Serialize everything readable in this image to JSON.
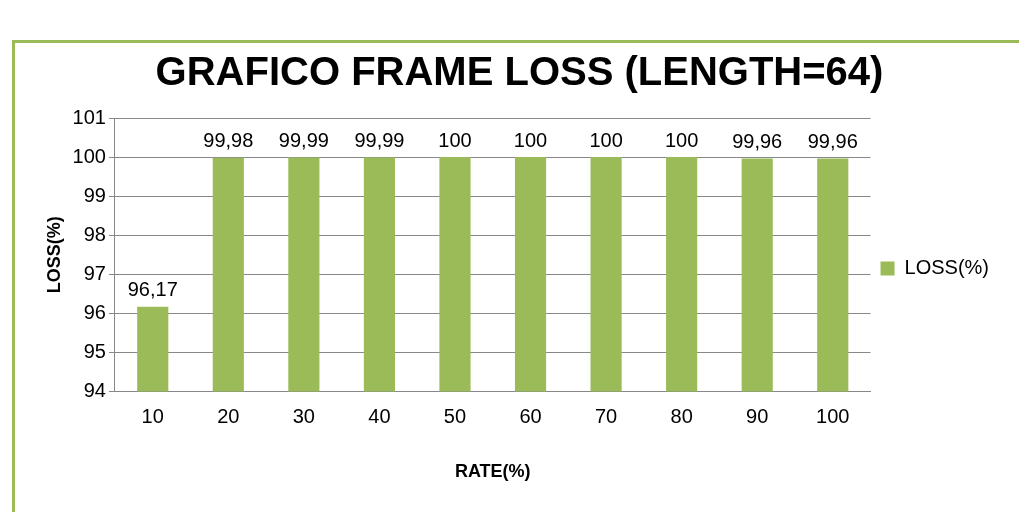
{
  "chart_data": {
    "type": "bar",
    "title": "GRAFICO FRAME LOSS (LENGTH=64)",
    "xlabel": "RATE(%)",
    "ylabel": "LOSS(%)",
    "categories": [
      "10",
      "20",
      "30",
      "40",
      "50",
      "60",
      "70",
      "80",
      "90",
      "100"
    ],
    "series": [
      {
        "name": "LOSS(%)",
        "color": "#9bbb59",
        "values": [
          96.17,
          99.98,
          99.99,
          99.99,
          100,
          100,
          100,
          100,
          99.96,
          99.96
        ],
        "value_labels": [
          "96,17",
          "99,98",
          "99,99",
          "99,99",
          "100",
          "100",
          "100",
          "100",
          "99,96",
          "99,96"
        ]
      }
    ],
    "ylim": [
      94,
      101
    ],
    "yticks": [
      94,
      95,
      96,
      97,
      98,
      99,
      100,
      101
    ],
    "grid": "y",
    "legend": "right"
  }
}
